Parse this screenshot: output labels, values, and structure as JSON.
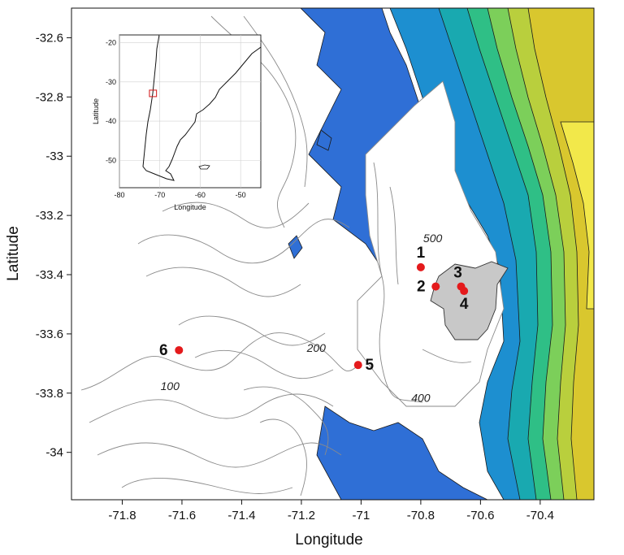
{
  "map": {
    "xlabel": "Longitude",
    "ylabel": "Latitude",
    "x_ticks": [
      "-71.8",
      "-71.6",
      "-71.4",
      "-71.2",
      "-71",
      "-70.8",
      "-70.6",
      "-70.4"
    ],
    "y_ticks": [
      "-32.6",
      "-32.8",
      "-33",
      "-33.2",
      "-33.4",
      "-33.6",
      "-33.8",
      "-34"
    ],
    "xlim": [
      -71.97,
      -70.22
    ],
    "ylim": [
      -34.16,
      -32.5
    ],
    "contour_labels": [
      {
        "text": "500",
        "lon": -70.76,
        "lat": -33.29
      },
      {
        "text": "400",
        "lon": -70.8,
        "lat": -33.83
      },
      {
        "text": "200",
        "lon": -71.15,
        "lat": -33.66
      },
      {
        "text": "100",
        "lon": -71.64,
        "lat": -33.79
      }
    ],
    "sites": [
      {
        "label": "1",
        "lon": -70.8,
        "lat": -33.375
      },
      {
        "label": "2",
        "lon": -70.75,
        "lat": -33.44
      },
      {
        "label": "3",
        "lon": -70.665,
        "lat": -33.44
      },
      {
        "label": "4",
        "lon": -70.655,
        "lat": -33.455
      },
      {
        "label": "5",
        "lon": -71.01,
        "lat": -33.705
      },
      {
        "label": "6",
        "lon": -71.61,
        "lat": -33.655
      }
    ],
    "colors": {
      "site_marker": "#e41a1c",
      "urban_area": "#c8c8c8",
      "contour_line": "#8a8a8a",
      "elevation_ramp": [
        "#2f6fd6",
        "#1d8fd0",
        "#19a9b0",
        "#2fbf86",
        "#7ccf5a",
        "#b9cf3d",
        "#d9c72e",
        "#e8d532",
        "#f2e84a"
      ]
    }
  },
  "inset": {
    "xlabel": "Longitude",
    "ylabel": "Latitude",
    "x_ticks": [
      "-80",
      "-70",
      "-60",
      "-50"
    ],
    "y_ticks": [
      "-20",
      "-30",
      "-40",
      "-50"
    ],
    "xlim": [
      -80,
      -45
    ],
    "ylim": [
      -57,
      -18
    ],
    "study_box": {
      "lon": [
        -71.97,
        -70.22
      ],
      "lat": [
        -34.16,
        -32.5
      ]
    },
    "box_color": "#d62728"
  }
}
